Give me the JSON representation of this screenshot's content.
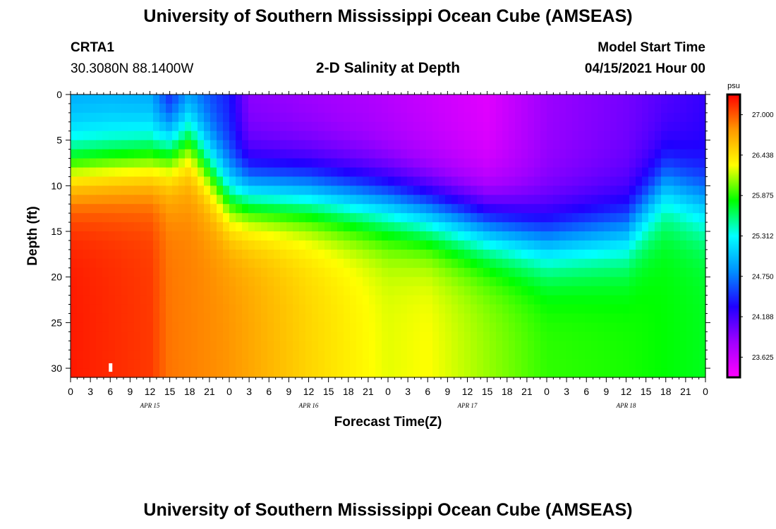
{
  "page": {
    "title_top": "University of Southern Mississippi Ocean Cube (AMSEAS)",
    "title_bottom": "University of Southern Mississippi Ocean Cube (AMSEAS)",
    "station_id": "CRTA1",
    "station_coords": "30.3080N  88.1400W",
    "plot_title": "2-D Salinity at Depth",
    "model_start_label": "Model Start Time",
    "model_start_value": "04/15/2021 Hour 00"
  },
  "colors": {
    "background": "#ffffff",
    "text": "#000000",
    "marker": "#ffffff"
  },
  "chart_data": {
    "type": "heatmap",
    "title": "2-D Salinity at Depth",
    "xlabel": "Forecast Time(Z)",
    "ylabel": "Depth (ft)",
    "x_unit": "hours since 04/15/2021 00Z",
    "xlim": [
      0,
      96
    ],
    "ylim": [
      0,
      31
    ],
    "y_inverted": true,
    "x_ticks": [
      0,
      3,
      6,
      9,
      12,
      15,
      18,
      21,
      24,
      27,
      30,
      33,
      36,
      39,
      42,
      45,
      48,
      51,
      54,
      57,
      60,
      63,
      66,
      69,
      72,
      75,
      78,
      81,
      84,
      87,
      90,
      93,
      96
    ],
    "x_tick_labels": [
      "0",
      "3",
      "6",
      "9",
      "12",
      "15",
      "18",
      "21",
      "0",
      "3",
      "6",
      "9",
      "12",
      "15",
      "18",
      "21",
      "0",
      "3",
      "6",
      "9",
      "12",
      "15",
      "18",
      "21",
      "0",
      "3",
      "6",
      "9",
      "12",
      "15",
      "18",
      "21",
      "0"
    ],
    "date_labels": [
      {
        "label": "APR 15",
        "x": 12
      },
      {
        "label": "APR 16",
        "x": 36
      },
      {
        "label": "APR 17",
        "x": 60
      },
      {
        "label": "APR 18",
        "x": 84
      }
    ],
    "y_ticks": [
      0,
      5,
      10,
      15,
      20,
      25,
      30
    ],
    "y_tick_labels": [
      "0",
      "5",
      "10",
      "15",
      "20",
      "25",
      "30"
    ],
    "colorbar": {
      "unit": "psu",
      "min": 23.344,
      "max": 27.281,
      "labels": [
        "27.000",
        "26.438",
        "25.875",
        "25.312",
        "24.750",
        "24.188",
        "23.625"
      ],
      "colors": [
        "#ff00ff",
        "#a000ff",
        "#2000ff",
        "#0090ff",
        "#00ffff",
        "#00ff00",
        "#ffff00",
        "#ff9900",
        "#ff0000"
      ]
    },
    "marker": {
      "x": 6,
      "y": 30
    },
    "surface_keys": [
      {
        "t": 0,
        "s": 24.9
      },
      {
        "t": 6,
        "s": 24.9
      },
      {
        "t": 12,
        "s": 24.85
      },
      {
        "t": 15,
        "s": 24.3
      },
      {
        "t": 18,
        "s": 24.7
      },
      {
        "t": 24,
        "s": 24.4
      },
      {
        "t": 27,
        "s": 23.9
      },
      {
        "t": 45,
        "s": 23.75
      },
      {
        "t": 63,
        "s": 23.5
      },
      {
        "t": 72,
        "s": 23.85
      },
      {
        "t": 84,
        "s": 24.0
      },
      {
        "t": 96,
        "s": 24.25
      }
    ],
    "bottom_keys": [
      {
        "t": 0,
        "s": 27.2
      },
      {
        "t": 12,
        "s": 27.1
      },
      {
        "t": 15,
        "s": 26.9
      },
      {
        "t": 24,
        "s": 26.8
      },
      {
        "t": 36,
        "s": 26.5
      },
      {
        "t": 48,
        "s": 26.25
      },
      {
        "t": 54,
        "s": 26.3
      },
      {
        "t": 63,
        "s": 26.1
      },
      {
        "t": 72,
        "s": 25.9
      },
      {
        "t": 84,
        "s": 25.85
      },
      {
        "t": 96,
        "s": 25.75
      }
    ],
    "halocline_keys": [
      {
        "t": 0,
        "d": 8
      },
      {
        "t": 12,
        "d": 7
      },
      {
        "t": 18,
        "d": 5
      },
      {
        "t": 24,
        "d": 11
      },
      {
        "t": 36,
        "d": 11
      },
      {
        "t": 48,
        "d": 12
      },
      {
        "t": 60,
        "d": 14
      },
      {
        "t": 72,
        "d": 16
      },
      {
        "t": 84,
        "d": 15
      },
      {
        "t": 90,
        "d": 10
      },
      {
        "t": 96,
        "d": 12
      }
    ]
  }
}
